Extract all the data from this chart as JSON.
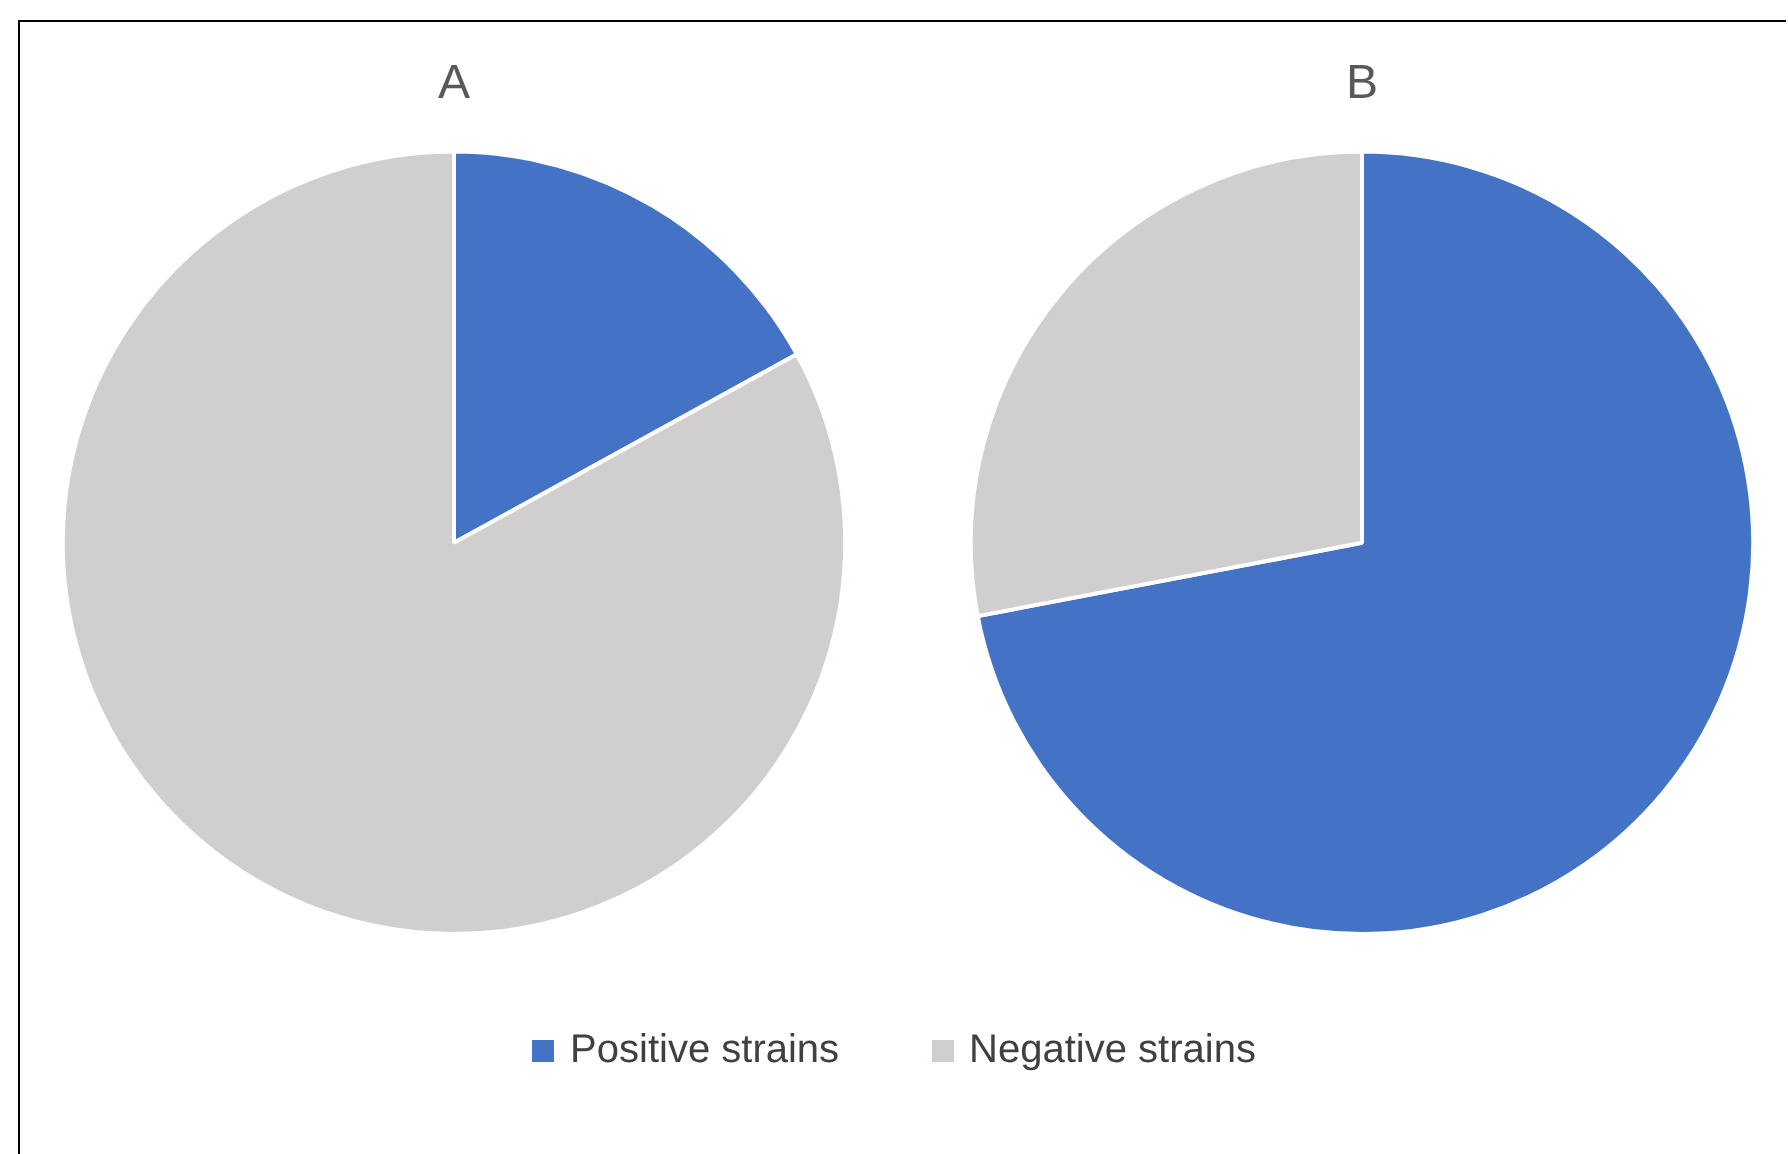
{
  "chart_data": [
    {
      "type": "pie",
      "title": "A",
      "categories": [
        "Positive strains",
        "Negative strains"
      ],
      "values": [
        17,
        83
      ],
      "colors": [
        "#4472c4",
        "#d0cece"
      ],
      "legend": "bottom"
    },
    {
      "type": "pie",
      "title": "B",
      "categories": [
        null,
        null
      ],
      "values": [
        72,
        28
      ],
      "colors": [
        "#4472c4",
        "#d0cece"
      ],
      "legend": false
    }
  ]
}
